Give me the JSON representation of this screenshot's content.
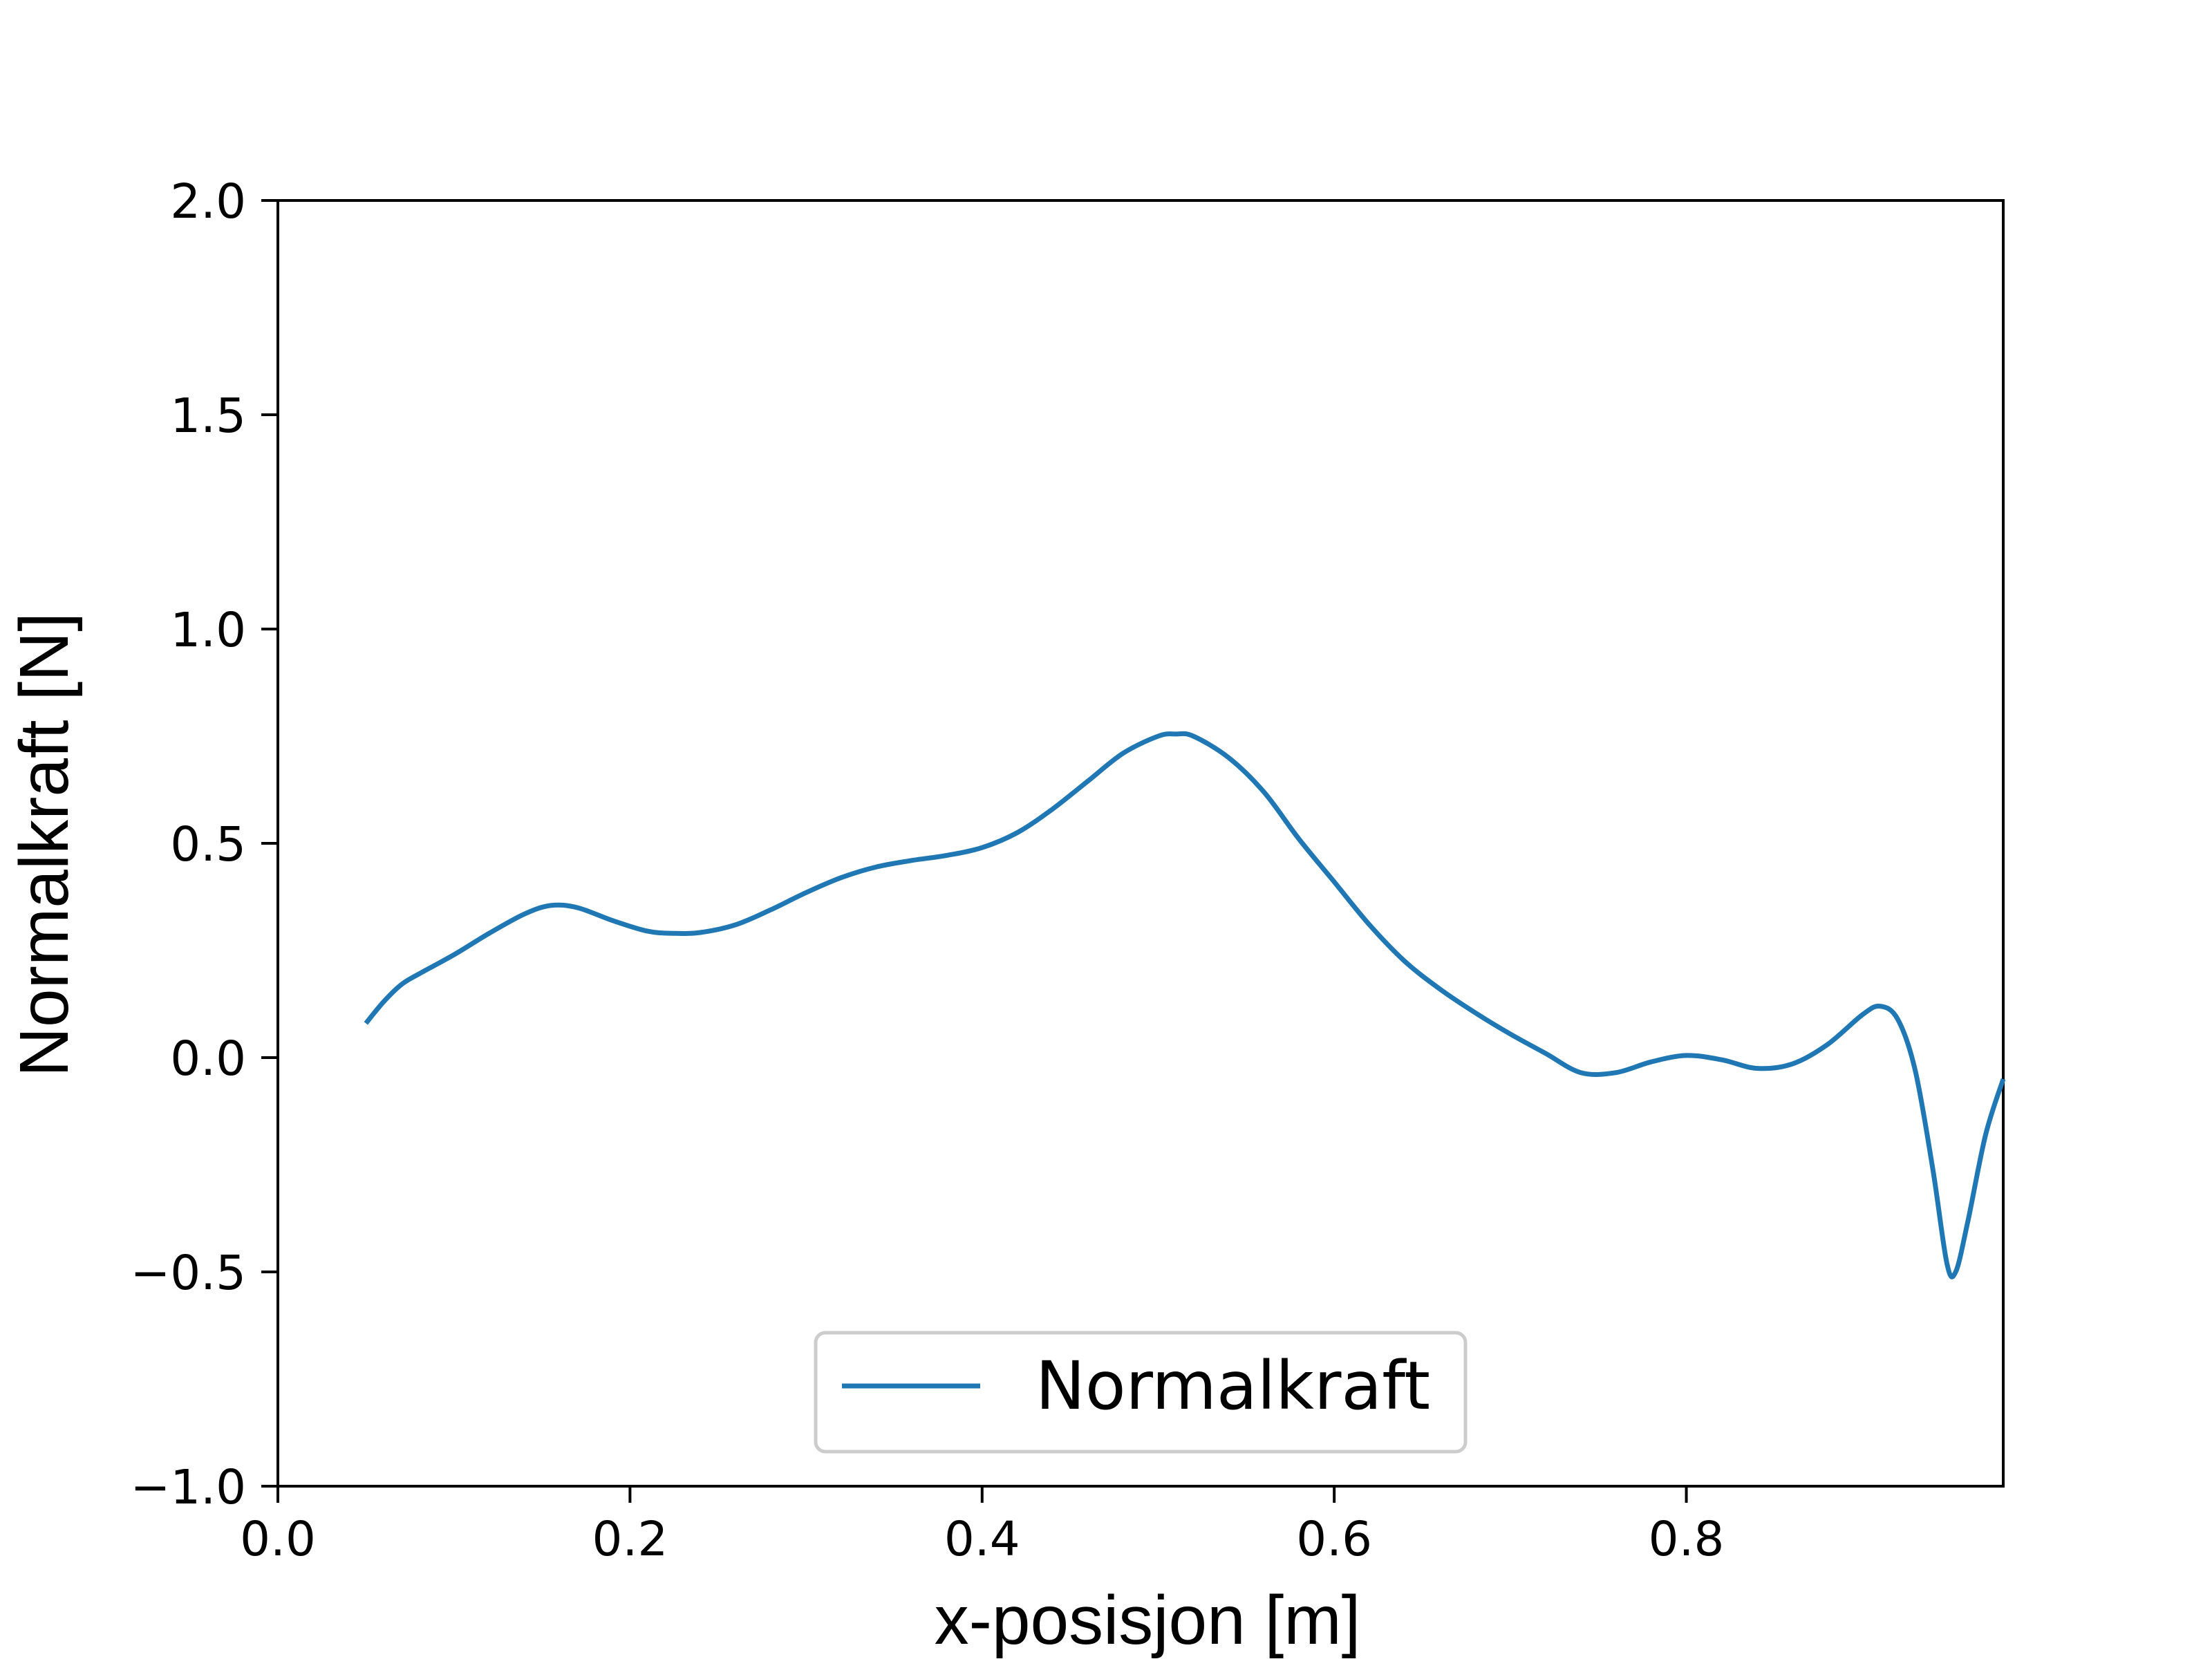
{
  "chart_data": {
    "type": "line",
    "title": "",
    "xlabel": "x-posisjon [m]",
    "ylabel": "Normalkraft [N]",
    "xlim": [
      0.0,
      0.98
    ],
    "ylim": [
      -1.0,
      2.0
    ],
    "x_ticks": [
      "0.0",
      "0.2",
      "0.4",
      "0.6",
      "0.8"
    ],
    "y_ticks": [
      "−1.0",
      "−0.5",
      "0.0",
      "0.5",
      "1.0",
      "1.5",
      "2.0"
    ],
    "grid": false,
    "legend": {
      "position": "lower-center",
      "entries": [
        "Normalkraft"
      ]
    },
    "series": [
      {
        "name": "Normalkraft",
        "color": "#1f77b4",
        "points": [
          [
            0.05,
            0.08
          ],
          [
            0.06,
            0.13
          ],
          [
            0.07,
            0.17
          ],
          [
            0.08,
            0.195
          ],
          [
            0.1,
            0.24
          ],
          [
            0.12,
            0.29
          ],
          [
            0.14,
            0.335
          ],
          [
            0.155,
            0.355
          ],
          [
            0.17,
            0.35
          ],
          [
            0.19,
            0.32
          ],
          [
            0.21,
            0.295
          ],
          [
            0.225,
            0.29
          ],
          [
            0.24,
            0.292
          ],
          [
            0.26,
            0.31
          ],
          [
            0.28,
            0.345
          ],
          [
            0.3,
            0.385
          ],
          [
            0.32,
            0.42
          ],
          [
            0.34,
            0.445
          ],
          [
            0.36,
            0.46
          ],
          [
            0.38,
            0.472
          ],
          [
            0.4,
            0.49
          ],
          [
            0.42,
            0.525
          ],
          [
            0.44,
            0.58
          ],
          [
            0.46,
            0.645
          ],
          [
            0.48,
            0.71
          ],
          [
            0.5,
            0.75
          ],
          [
            0.51,
            0.755
          ],
          [
            0.52,
            0.75
          ],
          [
            0.54,
            0.7
          ],
          [
            0.56,
            0.62
          ],
          [
            0.58,
            0.51
          ],
          [
            0.6,
            0.41
          ],
          [
            0.62,
            0.31
          ],
          [
            0.64,
            0.225
          ],
          [
            0.66,
            0.16
          ],
          [
            0.68,
            0.105
          ],
          [
            0.7,
            0.055
          ],
          [
            0.72,
            0.01
          ],
          [
            0.74,
            -0.035
          ],
          [
            0.76,
            -0.035
          ],
          [
            0.78,
            -0.01
          ],
          [
            0.8,
            0.005
          ],
          [
            0.82,
            -0.005
          ],
          [
            0.84,
            -0.025
          ],
          [
            0.86,
            -0.015
          ],
          [
            0.88,
            0.03
          ],
          [
            0.9,
            0.1
          ],
          [
            0.91,
            0.12
          ],
          [
            0.92,
            0.09
          ],
          [
            0.93,
            -0.03
          ],
          [
            0.94,
            -0.26
          ],
          [
            0.948,
            -0.48
          ],
          [
            0.953,
            -0.5
          ],
          [
            0.96,
            -0.38
          ],
          [
            0.97,
            -0.18
          ],
          [
            0.98,
            -0.05
          ]
        ]
      }
    ]
  }
}
